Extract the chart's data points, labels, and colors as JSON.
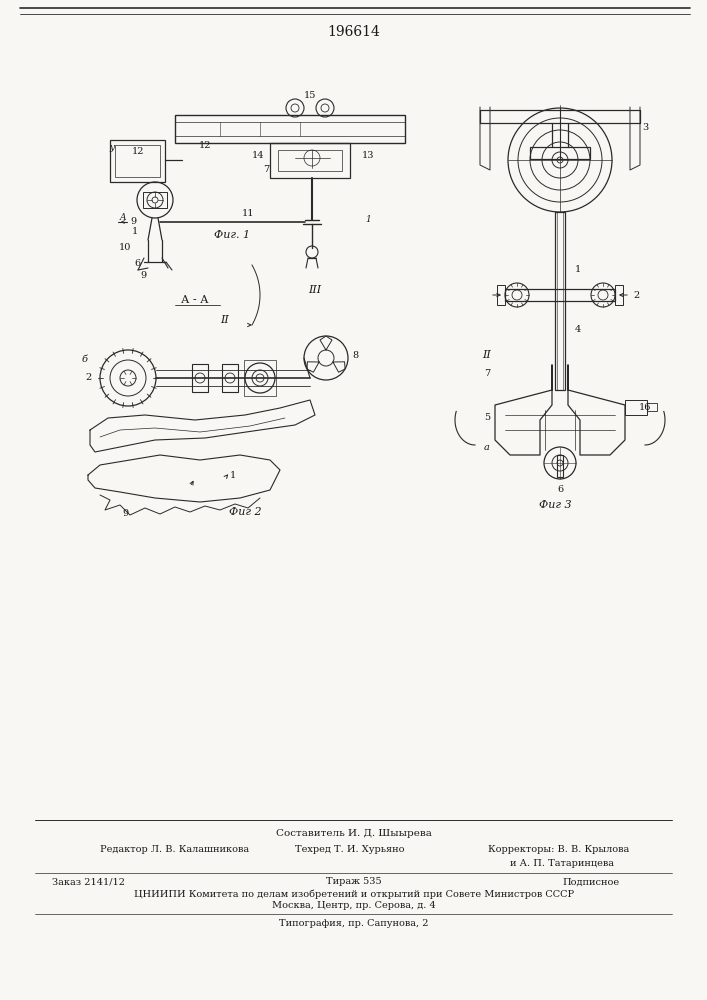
{
  "patent_number": "196614",
  "bg_color": "#f8f7f3",
  "line_color": "#2a2a2a",
  "text_color": "#1a1a1a",
  "footer": {
    "composer": "Составитель И. Д. Шыырева",
    "editor_label": "Редактор Л. В. Калашникова",
    "techred_label": "Техред Т. И. Хурьяно",
    "correctors_label": "Корректоры: В. В. Крылова",
    "correctors_label2": "и А. П. Татаринцева",
    "order_label": "Заказ 2141/12",
    "tirazh_label": "Тираж 535",
    "podpisano_label": "Подписное",
    "cniip_label": "ЦНИИПИ Комитета по делам изобретений и открытий при Совете Министров СССР",
    "address_label": "Москва, Центр, пр. Серова, д. 4",
    "tipograf_label": "Типография, пр. Сапунова, 2"
  }
}
